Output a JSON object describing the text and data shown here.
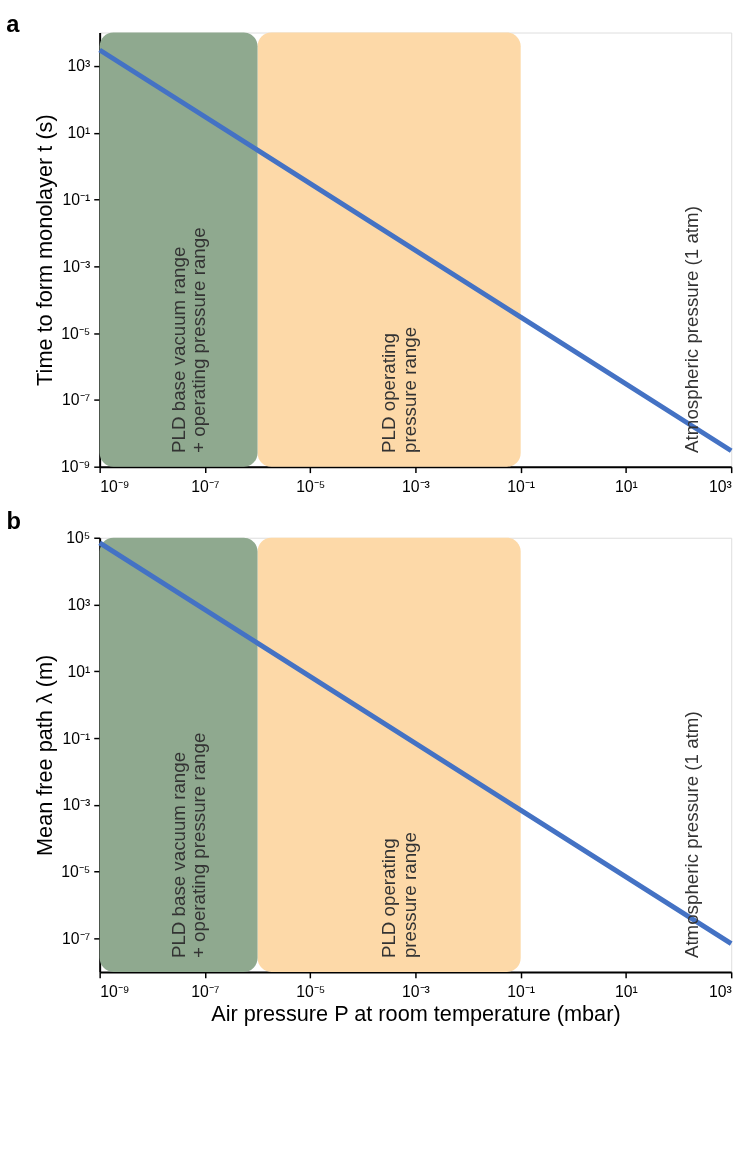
{
  "chart_data": [
    {
      "type": "line",
      "title": "a",
      "ylabel": "Time to form monolayer t (s)",
      "x": [
        1e-09,
        1e-06,
        0.1,
        1000.0
      ],
      "series": [
        {
          "color": "#4472c4",
          "values": [
            3000.0,
            3,
            3e-05,
            3e-09
          ]
        }
      ],
      "xlim": [
        1e-09,
        1000.0
      ],
      "ylim": [
        1e-09,
        10000.0
      ],
      "log": "xy",
      "grid": false,
      "xticks": [
        {
          "value": 1e-09,
          "label": "10⁻⁹"
        },
        {
          "value": 1e-07,
          "label": "10⁻⁷"
        },
        {
          "value": 1e-05,
          "label": "10⁻⁵"
        },
        {
          "value": 0.001,
          "label": "10⁻³"
        },
        {
          "value": 0.1,
          "label": "10⁻¹"
        },
        {
          "value": 10,
          "label": "10¹"
        },
        {
          "value": 1000,
          "label": "10³"
        }
      ],
      "yticks": [
        {
          "value": 1e-09,
          "label": "10⁻⁹"
        },
        {
          "value": 1e-07,
          "label": "10⁻⁷"
        },
        {
          "value": 1e-05,
          "label": "10⁻⁵"
        },
        {
          "value": 0.001,
          "label": "10⁻³"
        },
        {
          "value": 0.1,
          "label": "10⁻¹"
        },
        {
          "value": 10,
          "label": "10¹"
        },
        {
          "value": 1000,
          "label": "10³"
        }
      ],
      "bands": [
        {
          "axis": "x",
          "from": 1e-06,
          "to": 0.1,
          "label": "PLD operating\npressure range",
          "color": "#fdd9a8"
        },
        {
          "axis": "x",
          "from": 1e-09,
          "to": 1e-06,
          "label": "PLD base vacuum range\n+ operating pressure range",
          "color": "#8fa98f"
        }
      ],
      "annotations": [
        "Atmospheric pressure (1 atm)"
      ]
    },
    {
      "type": "line",
      "title": "b",
      "ylabel": "Mean free path λ (m)",
      "xlabel": "Air pressure P at room temperature (mbar)",
      "x": [
        1e-09,
        1e-06,
        0.1,
        1000.0
      ],
      "series": [
        {
          "color": "#4472c4",
          "values": [
            70000.0,
            70,
            0.0007,
            7e-08
          ]
        }
      ],
      "xlim": [
        1e-09,
        1000.0
      ],
      "ylim": [
        1e-08,
        100000.0
      ],
      "log": "xy",
      "grid": false,
      "xticks": [
        {
          "value": 1e-09,
          "label": "10⁻⁹"
        },
        {
          "value": 1e-07,
          "label": "10⁻⁷"
        },
        {
          "value": 1e-05,
          "label": "10⁻⁵"
        },
        {
          "value": 0.001,
          "label": "10⁻³"
        },
        {
          "value": 0.1,
          "label": "10⁻¹"
        },
        {
          "value": 10,
          "label": "10¹"
        },
        {
          "value": 1000,
          "label": "10³"
        }
      ],
      "yticks": [
        {
          "value": 1e-07,
          "label": "10⁻⁷"
        },
        {
          "value": 1e-05,
          "label": "10⁻⁵"
        },
        {
          "value": 0.001,
          "label": "10⁻³"
        },
        {
          "value": 0.1,
          "label": "10⁻¹"
        },
        {
          "value": 10,
          "label": "10¹"
        },
        {
          "value": 1000,
          "label": "10³"
        },
        {
          "value": 100000.0,
          "label": "10⁵"
        }
      ],
      "bands": [
        {
          "axis": "x",
          "from": 1e-06,
          "to": 0.1,
          "label": "PLD operating\npressure range",
          "color": "#fdd9a8"
        },
        {
          "axis": "x",
          "from": 1e-09,
          "to": 1e-06,
          "label": "PLD base vacuum range\n+ operating pressure range",
          "color": "#8fa98f"
        }
      ],
      "annotations": [
        "Atmospheric pressure (1 atm)"
      ]
    }
  ]
}
